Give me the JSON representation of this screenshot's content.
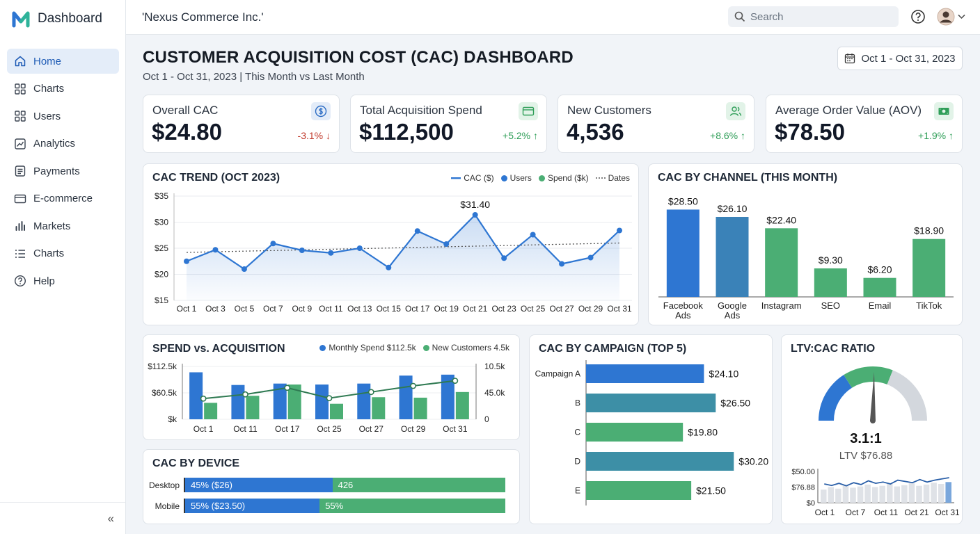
{
  "app": {
    "name": "Dashboard",
    "company": "'Nexus Commerce Inc.'"
  },
  "search": {
    "placeholder": "Search"
  },
  "nav": [
    {
      "label": "Home",
      "icon": "home-icon",
      "active": true
    },
    {
      "label": "Charts",
      "icon": "grid-icon"
    },
    {
      "label": "Users",
      "icon": "grid-icon"
    },
    {
      "label": "Analytics",
      "icon": "analytics-icon"
    },
    {
      "label": "Payments",
      "icon": "document-icon"
    },
    {
      "label": "E-commerce",
      "icon": "card-icon"
    },
    {
      "label": "Markets",
      "icon": "bar-chart-icon"
    },
    {
      "label": "Charts",
      "icon": "list-icon"
    },
    {
      "label": "Help",
      "icon": "help-icon"
    }
  ],
  "collapse_label": "«",
  "page": {
    "title": "CUSTOMER ACQUISITION COST (CAC) DASHBOARD",
    "subtitle": "Oct 1 - Oct 31, 2023 | This Month vs Last Month",
    "date_range": "Oct 1 - Oct 31, 2023"
  },
  "kpis": [
    {
      "label": "Overall CAC",
      "value": "$24.80",
      "delta": "-3.1% ↓",
      "trend": "down",
      "icon": "dollar-icon",
      "icon_color": "#2b6cc4",
      "icon_bg": "#e3ecf8"
    },
    {
      "label": "Total Acquisition Spend",
      "value": "$112,500",
      "delta": "+5.2% ↑",
      "trend": "up",
      "icon": "card-icon",
      "icon_color": "#2f9e58",
      "icon_bg": "#e2f3e8"
    },
    {
      "label": "New Customers",
      "value": "4,536",
      "delta": "+8.6% ↑",
      "trend": "up",
      "icon": "users-icon",
      "icon_color": "#2f9e58",
      "icon_bg": "#e2f3e8"
    },
    {
      "label": "Average Order Value (AOV)",
      "value": "$78.50",
      "delta": "+1.9% ↑",
      "trend": "up",
      "icon": "cash-icon",
      "icon_color": "#2f9e58",
      "icon_bg": "#e2f3e8"
    }
  ],
  "colors": {
    "blue": "#2e76d2",
    "teal": "#3d8fa6",
    "green": "#4bae74",
    "gray": "#c9ced6"
  },
  "chart_data": [
    {
      "id": "cac_trend",
      "type": "line",
      "title": "CAC TREND (OCT 2023)",
      "legend": [
        "CAC ($)",
        "Users",
        "Spend ($k)",
        "Dates"
      ],
      "x": [
        "Oct 1",
        "Oct 3",
        "Oct 5",
        "Oct 7",
        "Oct 9",
        "Oct 11",
        "Oct 13",
        "Oct 15",
        "Oct 17",
        "Oct 19",
        "Oct 21",
        "Oct 23",
        "Oct 25",
        "Oct 27",
        "Oct 29",
        "Oct 31"
      ],
      "y_ticks": [
        "$35",
        "$30",
        "$25",
        "$20",
        "$15"
      ],
      "ylim": [
        15,
        35
      ],
      "series": [
        {
          "name": "CAC ($)",
          "values": [
            22.5,
            24.7,
            21.0,
            25.9,
            24.6,
            24.1,
            25.0,
            21.3,
            28.3,
            25.8,
            31.4,
            23.1,
            27.6,
            22.0,
            23.2,
            28.4
          ]
        }
      ],
      "trend": [
        24.2,
        26.0
      ],
      "annotation": {
        "index": 10,
        "label": "$31.40"
      }
    },
    {
      "id": "cac_channel",
      "type": "bar",
      "title": "CAC BY CHANNEL (THIS MONTH)",
      "categories": [
        [
          "Facebook",
          "Ads"
        ],
        [
          "Google",
          "Ads"
        ],
        [
          "Instagram"
        ],
        [
          "SEO"
        ],
        [
          "Email"
        ],
        [
          "TikTok"
        ]
      ],
      "values": [
        28.5,
        26.1,
        22.4,
        9.3,
        6.2,
        18.9
      ],
      "labels": [
        "$28.50",
        "$26.10",
        "$22.40",
        "$9.30",
        "$6.20",
        "$18.90"
      ],
      "colors": [
        "#2e76d2",
        "#3a82b8",
        "#4bae74",
        "#4bae74",
        "#4bae74",
        "#4bae74"
      ],
      "ylim": [
        0,
        32
      ]
    },
    {
      "id": "spend_acq",
      "type": "bar",
      "title": "SPEND vs. ACQUISITION",
      "legend": [
        "Monthly Spend $112.5k",
        "New Customers 4.5k"
      ],
      "categories": [
        "Oct 1",
        "Oct 11",
        "Oct 17",
        "Oct 25",
        "Oct 27",
        "Oct 29",
        "Oct 31"
      ],
      "left_ticks": [
        "$112.5k",
        "$60.5k",
        "$k"
      ],
      "right_ticks": [
        "10.5k",
        "45.0k",
        "0"
      ],
      "spend": [
        100,
        73,
        76,
        74,
        76,
        93,
        95
      ],
      "customers": [
        35,
        50,
        74,
        33,
        47,
        46,
        58
      ],
      "line": [
        44,
        53,
        67,
        45,
        58,
        71,
        82
      ],
      "ylim": [
        0,
        112.5
      ]
    },
    {
      "id": "cac_campaign",
      "type": "bar",
      "title": "CAC BY CAMPAIGN (TOP 5)",
      "categories": [
        "Campaign A",
        "B",
        "C",
        "D",
        "E"
      ],
      "values": [
        24.1,
        26.5,
        19.8,
        30.2,
        21.5
      ],
      "labels": [
        "$24.10",
        "$26.50",
        "$19.80",
        "$30.20",
        "$21.50"
      ],
      "colors": [
        "#2e76d2",
        "#3d8fa6",
        "#4bae74",
        "#3d8fa6",
        "#4bae74"
      ],
      "xlim": [
        0,
        34
      ]
    },
    {
      "id": "ltv_cac",
      "type": "gauge",
      "title": "LTV:CAC RATIO",
      "ratio": "3.1:1",
      "ltv": "LTV $76.88",
      "gauge_fraction": 0.62,
      "mini_ticks": [
        "$50.00",
        "$76.88",
        "$0"
      ],
      "mini_x": [
        "Oct 1",
        "Oct 7",
        "Oct 11",
        "Oct 21",
        "Oct 31"
      ],
      "mini_bars": [
        42,
        50,
        45,
        55,
        48,
        52,
        58,
        50,
        54,
        60,
        52,
        56,
        62,
        54,
        58,
        64,
        60,
        66
      ],
      "mini_line": [
        60,
        55,
        62,
        54,
        64,
        58,
        70,
        62,
        66,
        60,
        72,
        68,
        64,
        74,
        66,
        72,
        76,
        80
      ]
    }
  ],
  "device": {
    "title": "CAC BY DEVICE",
    "rows": [
      {
        "label": "Desktop",
        "seg1": "45% ($26)",
        "seg2": "426",
        "pct": 46
      },
      {
        "label": "Mobile",
        "seg1": "55% ($23.50)",
        "seg2": "55%",
        "pct": 42
      }
    ]
  }
}
